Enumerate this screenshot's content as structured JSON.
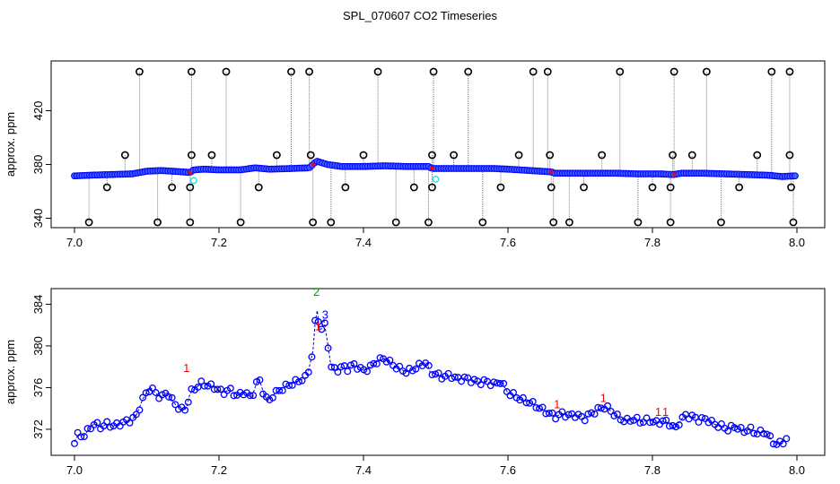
{
  "title": "SPL_070607  CO2 Timeseries",
  "chart_data": [
    {
      "type": "scatter",
      "panel": "top",
      "xlabel": "",
      "ylabel": "approx. ppm",
      "xlim": [
        7.0,
        8.0
      ],
      "ylim": [
        333,
        457
      ],
      "xticks": [
        "7.0",
        "7.2",
        "7.4",
        "7.6",
        "7.8",
        "8.0"
      ],
      "yticks": [
        "340",
        "380",
        "420"
      ],
      "baseline": [
        [
          7.0,
          371.5
        ],
        [
          7.02,
          372.0
        ],
        [
          7.05,
          372.5
        ],
        [
          7.08,
          373.0
        ],
        [
          7.1,
          375.0
        ],
        [
          7.12,
          375.5
        ],
        [
          7.15,
          374.5
        ],
        [
          7.16,
          374.0
        ],
        [
          7.165,
          376.0
        ],
        [
          7.18,
          376.5
        ],
        [
          7.2,
          376.0
        ],
        [
          7.23,
          376.0
        ],
        [
          7.25,
          377.5
        ],
        [
          7.27,
          376.5
        ],
        [
          7.3,
          377.0
        ],
        [
          7.325,
          377.5
        ],
        [
          7.335,
          382.5
        ],
        [
          7.35,
          380.0
        ],
        [
          7.37,
          378.5
        ],
        [
          7.4,
          378.5
        ],
        [
          7.43,
          379.0
        ],
        [
          7.46,
          378.5
        ],
        [
          7.49,
          378.5
        ],
        [
          7.495,
          377.0
        ],
        [
          7.52,
          377.0
        ],
        [
          7.55,
          377.0
        ],
        [
          7.58,
          377.0
        ],
        [
          7.6,
          376.5
        ],
        [
          7.63,
          375.5
        ],
        [
          7.66,
          374.5
        ],
        [
          7.665,
          373.5
        ],
        [
          7.7,
          373.5
        ],
        [
          7.73,
          373.5
        ],
        [
          7.75,
          373.5
        ],
        [
          7.78,
          373.0
        ],
        [
          7.81,
          373.0
        ],
        [
          7.83,
          372.5
        ],
        [
          7.84,
          373.5
        ],
        [
          7.87,
          373.5
        ],
        [
          7.9,
          373.0
        ],
        [
          7.93,
          372.5
        ],
        [
          7.96,
          372.0
        ],
        [
          7.98,
          371.0
        ],
        [
          7.995,
          371.5
        ]
      ],
      "outliers": [
        [
          7.02,
          337
        ],
        [
          7.045,
          363
        ],
        [
          7.07,
          387
        ],
        [
          7.09,
          449
        ],
        [
          7.115,
          337
        ],
        [
          7.135,
          363
        ],
        [
          7.16,
          337
        ],
        [
          7.16,
          363
        ],
        [
          7.162,
          387
        ],
        [
          7.162,
          449
        ],
        [
          7.19,
          387
        ],
        [
          7.21,
          449
        ],
        [
          7.23,
          337
        ],
        [
          7.255,
          363
        ],
        [
          7.28,
          387
        ],
        [
          7.3,
          449
        ],
        [
          7.325,
          449
        ],
        [
          7.327,
          387
        ],
        [
          7.33,
          337
        ],
        [
          7.355,
          337
        ],
        [
          7.375,
          363
        ],
        [
          7.4,
          387
        ],
        [
          7.42,
          449
        ],
        [
          7.445,
          337
        ],
        [
          7.47,
          363
        ],
        [
          7.49,
          337
        ],
        [
          7.495,
          363
        ],
        [
          7.495,
          387
        ],
        [
          7.497,
          449
        ],
        [
          7.525,
          387
        ],
        [
          7.545,
          449
        ],
        [
          7.565,
          337
        ],
        [
          7.59,
          363
        ],
        [
          7.615,
          387
        ],
        [
          7.635,
          449
        ],
        [
          7.655,
          449
        ],
        [
          7.658,
          387
        ],
        [
          7.66,
          363
        ],
        [
          7.663,
          337
        ],
        [
          7.685,
          337
        ],
        [
          7.705,
          363
        ],
        [
          7.73,
          387
        ],
        [
          7.755,
          449
        ],
        [
          7.78,
          337
        ],
        [
          7.8,
          363
        ],
        [
          7.825,
          337
        ],
        [
          7.825,
          363
        ],
        [
          7.828,
          387
        ],
        [
          7.83,
          449
        ],
        [
          7.855,
          387
        ],
        [
          7.875,
          449
        ],
        [
          7.895,
          337
        ],
        [
          7.92,
          363
        ],
        [
          7.945,
          387
        ],
        [
          7.965,
          449
        ],
        [
          7.99,
          449
        ],
        [
          7.99,
          387
        ],
        [
          7.992,
          363
        ],
        [
          7.995,
          337
        ]
      ],
      "cyan_markers": [
        [
          7.165,
          368
        ],
        [
          7.5,
          369
        ]
      ],
      "colors": {
        "points": "#0000ff",
        "points_fill": "#4060ff",
        "outliers": "#000000",
        "drops": "#808080",
        "cyan": "#40e0e0",
        "red": "#ff0000"
      }
    },
    {
      "type": "line",
      "panel": "bottom",
      "xlabel": "",
      "ylabel": "approx. ppm",
      "xlim": [
        7.0,
        8.0
      ],
      "ylim": [
        369.5,
        385.5
      ],
      "xticks": [
        "7.0",
        "7.2",
        "7.4",
        "7.6",
        "7.8",
        "8.0"
      ],
      "yticks": [
        "372",
        "376",
        "380",
        "384"
      ],
      "series_points": [
        [
          7.0,
          370.8
        ],
        [
          7.005,
          371.5
        ],
        [
          7.012,
          371.3
        ],
        [
          7.02,
          372.0
        ],
        [
          7.028,
          372.6
        ],
        [
          7.035,
          372.2
        ],
        [
          7.045,
          372.5
        ],
        [
          7.055,
          372.3
        ],
        [
          7.065,
          372.6
        ],
        [
          7.075,
          372.8
        ],
        [
          7.085,
          373.2
        ],
        [
          7.095,
          375.0
        ],
        [
          7.105,
          376.0
        ],
        [
          7.112,
          375.5
        ],
        [
          7.12,
          375.0
        ],
        [
          7.128,
          375.6
        ],
        [
          7.135,
          374.8
        ],
        [
          7.142,
          374.2
        ],
        [
          7.15,
          373.8
        ],
        [
          7.155,
          374.0
        ],
        [
          7.16,
          375.5
        ],
        [
          7.168,
          376.0
        ],
        [
          7.176,
          376.4
        ],
        [
          7.185,
          376.2
        ],
        [
          7.195,
          376.0
        ],
        [
          7.205,
          375.5
        ],
        [
          7.215,
          375.8
        ],
        [
          7.225,
          375.2
        ],
        [
          7.235,
          375.6
        ],
        [
          7.245,
          375.0
        ],
        [
          7.25,
          376.0
        ],
        [
          7.255,
          377.0
        ],
        [
          7.262,
          375.4
        ],
        [
          7.268,
          374.6
        ],
        [
          7.275,
          375.3
        ],
        [
          7.285,
          375.8
        ],
        [
          7.295,
          376.2
        ],
        [
          7.305,
          376.5
        ],
        [
          7.315,
          376.8
        ],
        [
          7.322,
          377.0
        ],
        [
          7.33,
          379.5
        ],
        [
          7.335,
          384.0
        ],
        [
          7.34,
          381.0
        ],
        [
          7.345,
          382.6
        ],
        [
          7.35,
          380.5
        ],
        [
          7.355,
          378.0
        ],
        [
          7.362,
          377.6
        ],
        [
          7.37,
          378.0
        ],
        [
          7.378,
          377.8
        ],
        [
          7.385,
          378.2
        ],
        [
          7.392,
          378.0
        ],
        [
          7.4,
          377.6
        ],
        [
          7.41,
          378.0
        ],
        [
          7.42,
          378.6
        ],
        [
          7.43,
          378.8
        ],
        [
          7.44,
          378.2
        ],
        [
          7.45,
          377.8
        ],
        [
          7.46,
          377.5
        ],
        [
          7.47,
          377.8
        ],
        [
          7.48,
          378.2
        ],
        [
          7.488,
          378.5
        ],
        [
          7.492,
          377.5
        ],
        [
          7.5,
          377.3
        ],
        [
          7.51,
          377.0
        ],
        [
          7.52,
          377.2
        ],
        [
          7.53,
          376.8
        ],
        [
          7.54,
          376.9
        ],
        [
          7.55,
          376.7
        ],
        [
          7.56,
          376.5
        ],
        [
          7.57,
          376.6
        ],
        [
          7.58,
          376.3
        ],
        [
          7.59,
          376.6
        ],
        [
          7.6,
          375.5
        ],
        [
          7.61,
          375.2
        ],
        [
          7.62,
          374.8
        ],
        [
          7.63,
          374.6
        ],
        [
          7.64,
          374.2
        ],
        [
          7.65,
          373.8
        ],
        [
          7.658,
          373.5
        ],
        [
          7.665,
          373.2
        ],
        [
          7.675,
          373.5
        ],
        [
          7.685,
          373.3
        ],
        [
          7.695,
          373.4
        ],
        [
          7.705,
          373.0
        ],
        [
          7.715,
          373.5
        ],
        [
          7.725,
          373.9
        ],
        [
          7.735,
          374.2
        ],
        [
          7.745,
          373.6
        ],
        [
          7.755,
          373.0
        ],
        [
          7.765,
          372.8
        ],
        [
          7.775,
          373.0
        ],
        [
          7.785,
          372.7
        ],
        [
          7.795,
          372.9
        ],
        [
          7.805,
          372.6
        ],
        [
          7.815,
          372.8
        ],
        [
          7.825,
          372.5
        ],
        [
          7.832,
          372.0
        ],
        [
          7.838,
          372.8
        ],
        [
          7.845,
          373.3
        ],
        [
          7.855,
          373.2
        ],
        [
          7.865,
          372.9
        ],
        [
          7.875,
          373.0
        ],
        [
          7.885,
          372.5
        ],
        [
          7.895,
          372.3
        ],
        [
          7.905,
          372.0
        ],
        [
          7.915,
          372.3
        ],
        [
          7.925,
          371.8
        ],
        [
          7.935,
          372.0
        ],
        [
          7.945,
          371.6
        ],
        [
          7.955,
          371.8
        ],
        [
          7.965,
          371.0
        ],
        [
          7.972,
          370.5
        ],
        [
          7.98,
          370.8
        ],
        [
          7.99,
          371.2
        ]
      ],
      "label_colors": {
        "1": "#ff0000",
        "2": "#00a000",
        "3": "#0000ff",
        "line": "#0000c0"
      },
      "annotations": [
        {
          "text": "1",
          "x": 7.155,
          "y": 377.5,
          "color": "#ff0000"
        },
        {
          "text": "2",
          "x": 7.335,
          "y": 384.8,
          "color": "#00a000"
        },
        {
          "text": "3",
          "x": 7.347,
          "y": 382.6,
          "color": "#0000ff"
        },
        {
          "text": "1",
          "x": 7.337,
          "y": 381.5,
          "color": "#ff0000"
        },
        {
          "text": "1",
          "x": 7.668,
          "y": 374.0,
          "color": "#ff0000"
        },
        {
          "text": "1",
          "x": 7.732,
          "y": 374.6,
          "color": "#ff0000"
        },
        {
          "text": "1",
          "x": 7.808,
          "y": 373.3,
          "color": "#ff0000"
        },
        {
          "text": "1",
          "x": 7.818,
          "y": 373.3,
          "color": "#ff0000"
        }
      ]
    }
  ]
}
